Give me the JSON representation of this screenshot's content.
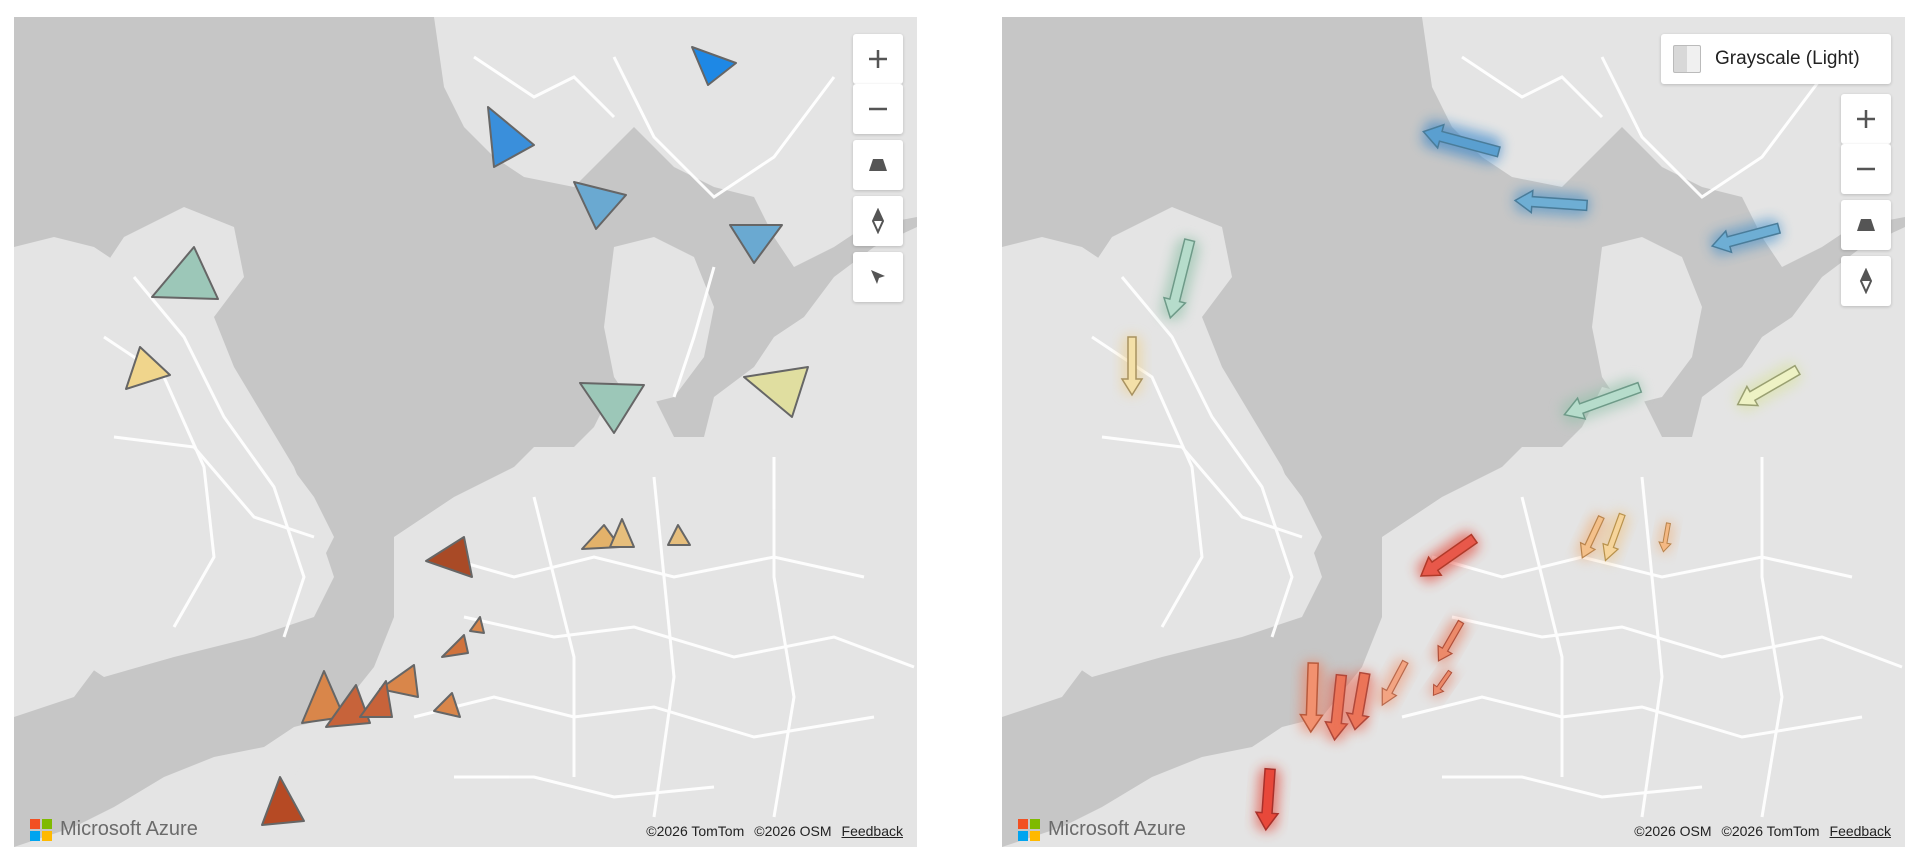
{
  "left_map": {
    "controls": [
      "zoom-in",
      "zoom-out",
      "pitch",
      "compass",
      "reset-bearing"
    ],
    "logo_text": "Microsoft Azure",
    "attributions": [
      "©2026 TomTom",
      "©2026 OSM"
    ],
    "feedback_label": "Feedback"
  },
  "right_map": {
    "style_picker": {
      "label": "Grayscale (Light)"
    },
    "controls": [
      "zoom-in",
      "zoom-out",
      "pitch",
      "compass"
    ],
    "logo_text": "Microsoft Azure",
    "attributions": [
      "©2026 OSM",
      "©2026 TomTom"
    ],
    "feedback_label": "Feedback"
  },
  "colors": {
    "sea": "#c6c6c6",
    "land": "#e4e4e4",
    "roads": "#ffffff",
    "marker_palette": [
      "#1e88e5",
      "#5b9bd5",
      "#9cc7b8",
      "#f0d58c",
      "#e7e3a8",
      "#e3b26a",
      "#d9864a",
      "#c0562b",
      "#a33c1c",
      "#e8483a"
    ]
  },
  "icons": {
    "zoom_in": "plus-icon",
    "zoom_out": "minus-icon",
    "pitch": "trapezoid-icon",
    "compass": "compass-icon",
    "reset": "cursor-icon"
  }
}
